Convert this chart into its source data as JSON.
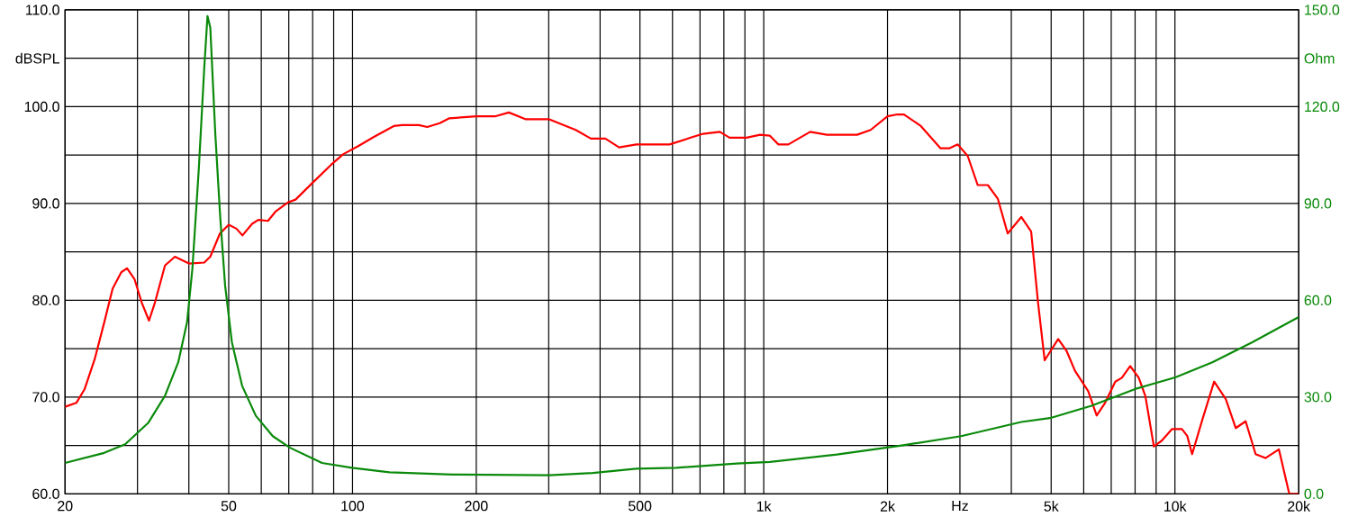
{
  "chart_data": {
    "type": "line",
    "log": "x",
    "grid": true,
    "xlim": [
      20,
      20000
    ],
    "ylim": [
      60,
      110
    ],
    "y2lim": [
      0,
      150
    ],
    "xticks": [
      20,
      {
        "value": 30,
        "label": null
      },
      {
        "value": 40,
        "label": null
      },
      50,
      {
        "value": 60,
        "label": null
      },
      {
        "value": 70,
        "label": null
      },
      {
        "value": 80,
        "label": null
      },
      {
        "value": 90,
        "label": null
      },
      100,
      200,
      {
        "value": 300,
        "label": null
      },
      {
        "value": 400,
        "label": null
      },
      500,
      {
        "value": 600,
        "label": null
      },
      {
        "value": 700,
        "label": null
      },
      {
        "value": 800,
        "label": null
      },
      {
        "value": 900,
        "label": null
      },
      {
        "value": 1000,
        "label": "1k"
      },
      {
        "value": 2000,
        "label": "2k"
      },
      {
        "value": 3000,
        "label": "Hz"
      },
      {
        "value": 4000,
        "label": null
      },
      {
        "value": 5000,
        "label": "5k"
      },
      {
        "value": 6000,
        "label": null
      },
      {
        "value": 7000,
        "label": null
      },
      {
        "value": 8000,
        "label": null
      },
      {
        "value": 9000,
        "label": null
      },
      {
        "value": 10000,
        "label": "10k"
      },
      {
        "value": 20000,
        "label": "20k"
      }
    ],
    "yticks": [
      {
        "value": 60,
        "label": "60.0"
      },
      {
        "value": 65,
        "label": null
      },
      {
        "value": 70,
        "label": "70.0"
      },
      {
        "value": 75,
        "label": null
      },
      {
        "value": 80,
        "label": "80.0"
      },
      {
        "value": 85,
        "label": null
      },
      {
        "value": 90,
        "label": "90.0"
      },
      {
        "value": 95,
        "label": null
      },
      {
        "value": 100,
        "label": "100.0"
      },
      {
        "value": 105,
        "label": "dBSPL"
      },
      {
        "value": 110,
        "label": "110.0"
      }
    ],
    "y2ticks": [
      {
        "value": 0,
        "label": "0.0"
      },
      {
        "value": 15,
        "label": null
      },
      {
        "value": 30,
        "label": "30.0"
      },
      {
        "value": 45,
        "label": null
      },
      {
        "value": 60,
        "label": "60.0"
      },
      {
        "value": 75,
        "label": null
      },
      {
        "value": 90,
        "label": "90.0"
      },
      {
        "value": 105,
        "label": null
      },
      {
        "value": 120,
        "label": "120.0"
      },
      {
        "value": 135,
        "label": "Ohm"
      },
      {
        "value": 150,
        "label": "150.0"
      }
    ],
    "series": [
      {
        "color": "#ff0000",
        "x": [
          20,
          21.3,
          22.3,
          23.6,
          24.9,
          26.1,
          27.4,
          28.3,
          29.5,
          30.7,
          32,
          33.1,
          35,
          37,
          40,
          43.6,
          45.1,
          47.6,
          50,
          52.2,
          54,
          57,
          59,
          62.3,
          65.1,
          69.6,
          72.7,
          79.8,
          88.7,
          95,
          103,
          113,
          126,
          132,
          145,
          152,
          163,
          172,
          200,
          222,
          240,
          264,
          301,
          349,
          380,
          412,
          445,
          490,
          590,
          712,
          782,
          826,
          908,
          980,
          1035,
          1086,
          1148,
          1297,
          1425,
          1687,
          1820,
          2000,
          2114,
          2193,
          2411,
          2692,
          2825,
          2964,
          3134,
          3314,
          3508,
          3709,
          3920,
          4230,
          4470,
          4645,
          4822,
          5201,
          5446,
          5717,
          6154,
          6452,
          6761,
          7161,
          7432,
          7785,
          8165,
          8475,
          8888,
          9290,
          9843,
          10398,
          10710,
          11010,
          11664,
          12455,
          13295,
          14057,
          14858,
          15710,
          16600,
          17900,
          18970,
          20000
        ],
        "values": [
          69.0,
          69.4,
          70.8,
          73.9,
          77.7,
          81.2,
          82.9,
          83.3,
          82.2,
          79.8,
          77.9,
          79.8,
          83.6,
          84.5,
          83.8,
          83.9,
          84.5,
          86.9,
          87.8,
          87.4,
          86.7,
          87.9,
          88.3,
          88.2,
          89.2,
          90.1,
          90.4,
          92.1,
          94.0,
          95.1,
          95.9,
          96.9,
          98.0,
          98.1,
          98.1,
          97.9,
          98.3,
          98.8,
          99.0,
          99.0,
          99.4,
          98.7,
          98.7,
          97.6,
          96.7,
          96.7,
          95.8,
          96.1,
          96.1,
          97.2,
          97.4,
          96.8,
          96.8,
          97.1,
          97.0,
          96.1,
          96.1,
          97.4,
          97.1,
          97.1,
          97.6,
          99.0,
          99.2,
          99.2,
          98.0,
          95.7,
          95.7,
          96.1,
          94.9,
          91.9,
          91.9,
          90.5,
          86.9,
          88.6,
          87.1,
          79.8,
          73.8,
          76.0,
          74.8,
          72.7,
          70.6,
          68.1,
          69.4,
          71.6,
          72.0,
          73.2,
          72.0,
          70.1,
          64.9,
          65.5,
          66.7,
          66.7,
          66.0,
          64.1,
          67.7,
          71.6,
          69.8,
          66.8,
          67.5,
          64.1,
          63.7,
          64.6,
          60.0,
          60.0
        ]
      },
      {
        "color": "#0a8a0a",
        "axis": "y2",
        "x": [
          20,
          24.9,
          28,
          31.9,
          35,
          37.7,
          39.6,
          40.8,
          42.3,
          43.6,
          44.4,
          45.1,
          46.4,
          47.7,
          49,
          50.9,
          53.9,
          58.2,
          64,
          70.5,
          84.3,
          99.6,
          123,
          175,
          301,
          384,
          490,
          613,
          859,
          1035,
          1507,
          2165,
          3020,
          4230,
          5010,
          6268,
          8000,
          10020,
          12330,
          15420,
          20000
        ],
        "values": [
          9.6,
          12.7,
          15.4,
          22.1,
          30.4,
          40.8,
          53.2,
          69.8,
          100.9,
          132.0,
          148.1,
          144.5,
          111.3,
          85.4,
          64.6,
          47.0,
          33.5,
          24.2,
          17.9,
          14.3,
          9.6,
          8.1,
          6.7,
          6.0,
          5.8,
          6.5,
          7.8,
          8.1,
          9.4,
          9.9,
          12.2,
          15.0,
          17.9,
          22.3,
          23.6,
          27.3,
          32.5,
          36.1,
          40.8,
          47.0,
          54.8
        ]
      }
    ]
  }
}
